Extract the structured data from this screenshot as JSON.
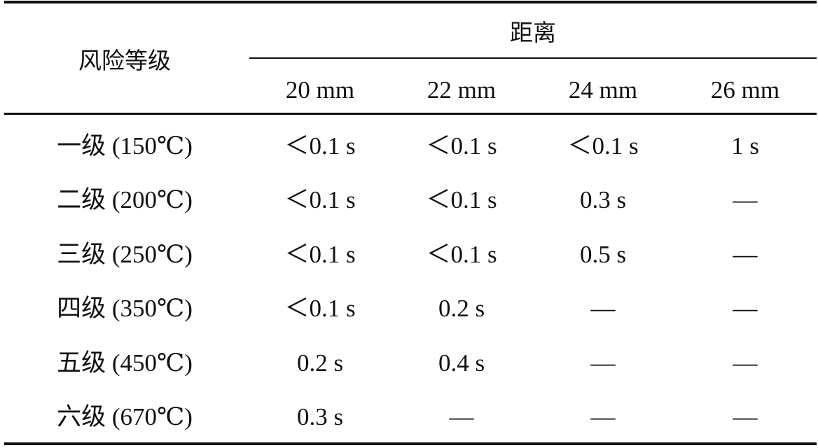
{
  "table": {
    "header": {
      "risk_level": "风险等级",
      "distance": "距离",
      "distances": [
        "20 mm",
        "22 mm",
        "24 mm",
        "26 mm"
      ]
    },
    "rows": [
      {
        "level": "一级 (150℃)",
        "cells": [
          "＜0.1 s",
          "＜0.1 s",
          "＜0.1 s",
          "1 s"
        ]
      },
      {
        "level": "二级 (200℃)",
        "cells": [
          "＜0.1 s",
          "＜0.1 s",
          "0.3 s",
          "—"
        ]
      },
      {
        "level": "三级 (250℃)",
        "cells": [
          "＜0.1 s",
          "＜0.1 s",
          "0.5 s",
          "—"
        ]
      },
      {
        "level": "四级 (350℃)",
        "cells": [
          "＜0.1 s",
          "0.2 s",
          "—",
          "—"
        ]
      },
      {
        "level": "五级 (450℃)",
        "cells": [
          "0.2 s",
          "0.4 s",
          "—",
          "—"
        ]
      },
      {
        "level": "六级 (670℃)",
        "cells": [
          "0.3 s",
          "—",
          "—",
          "—"
        ]
      }
    ]
  }
}
